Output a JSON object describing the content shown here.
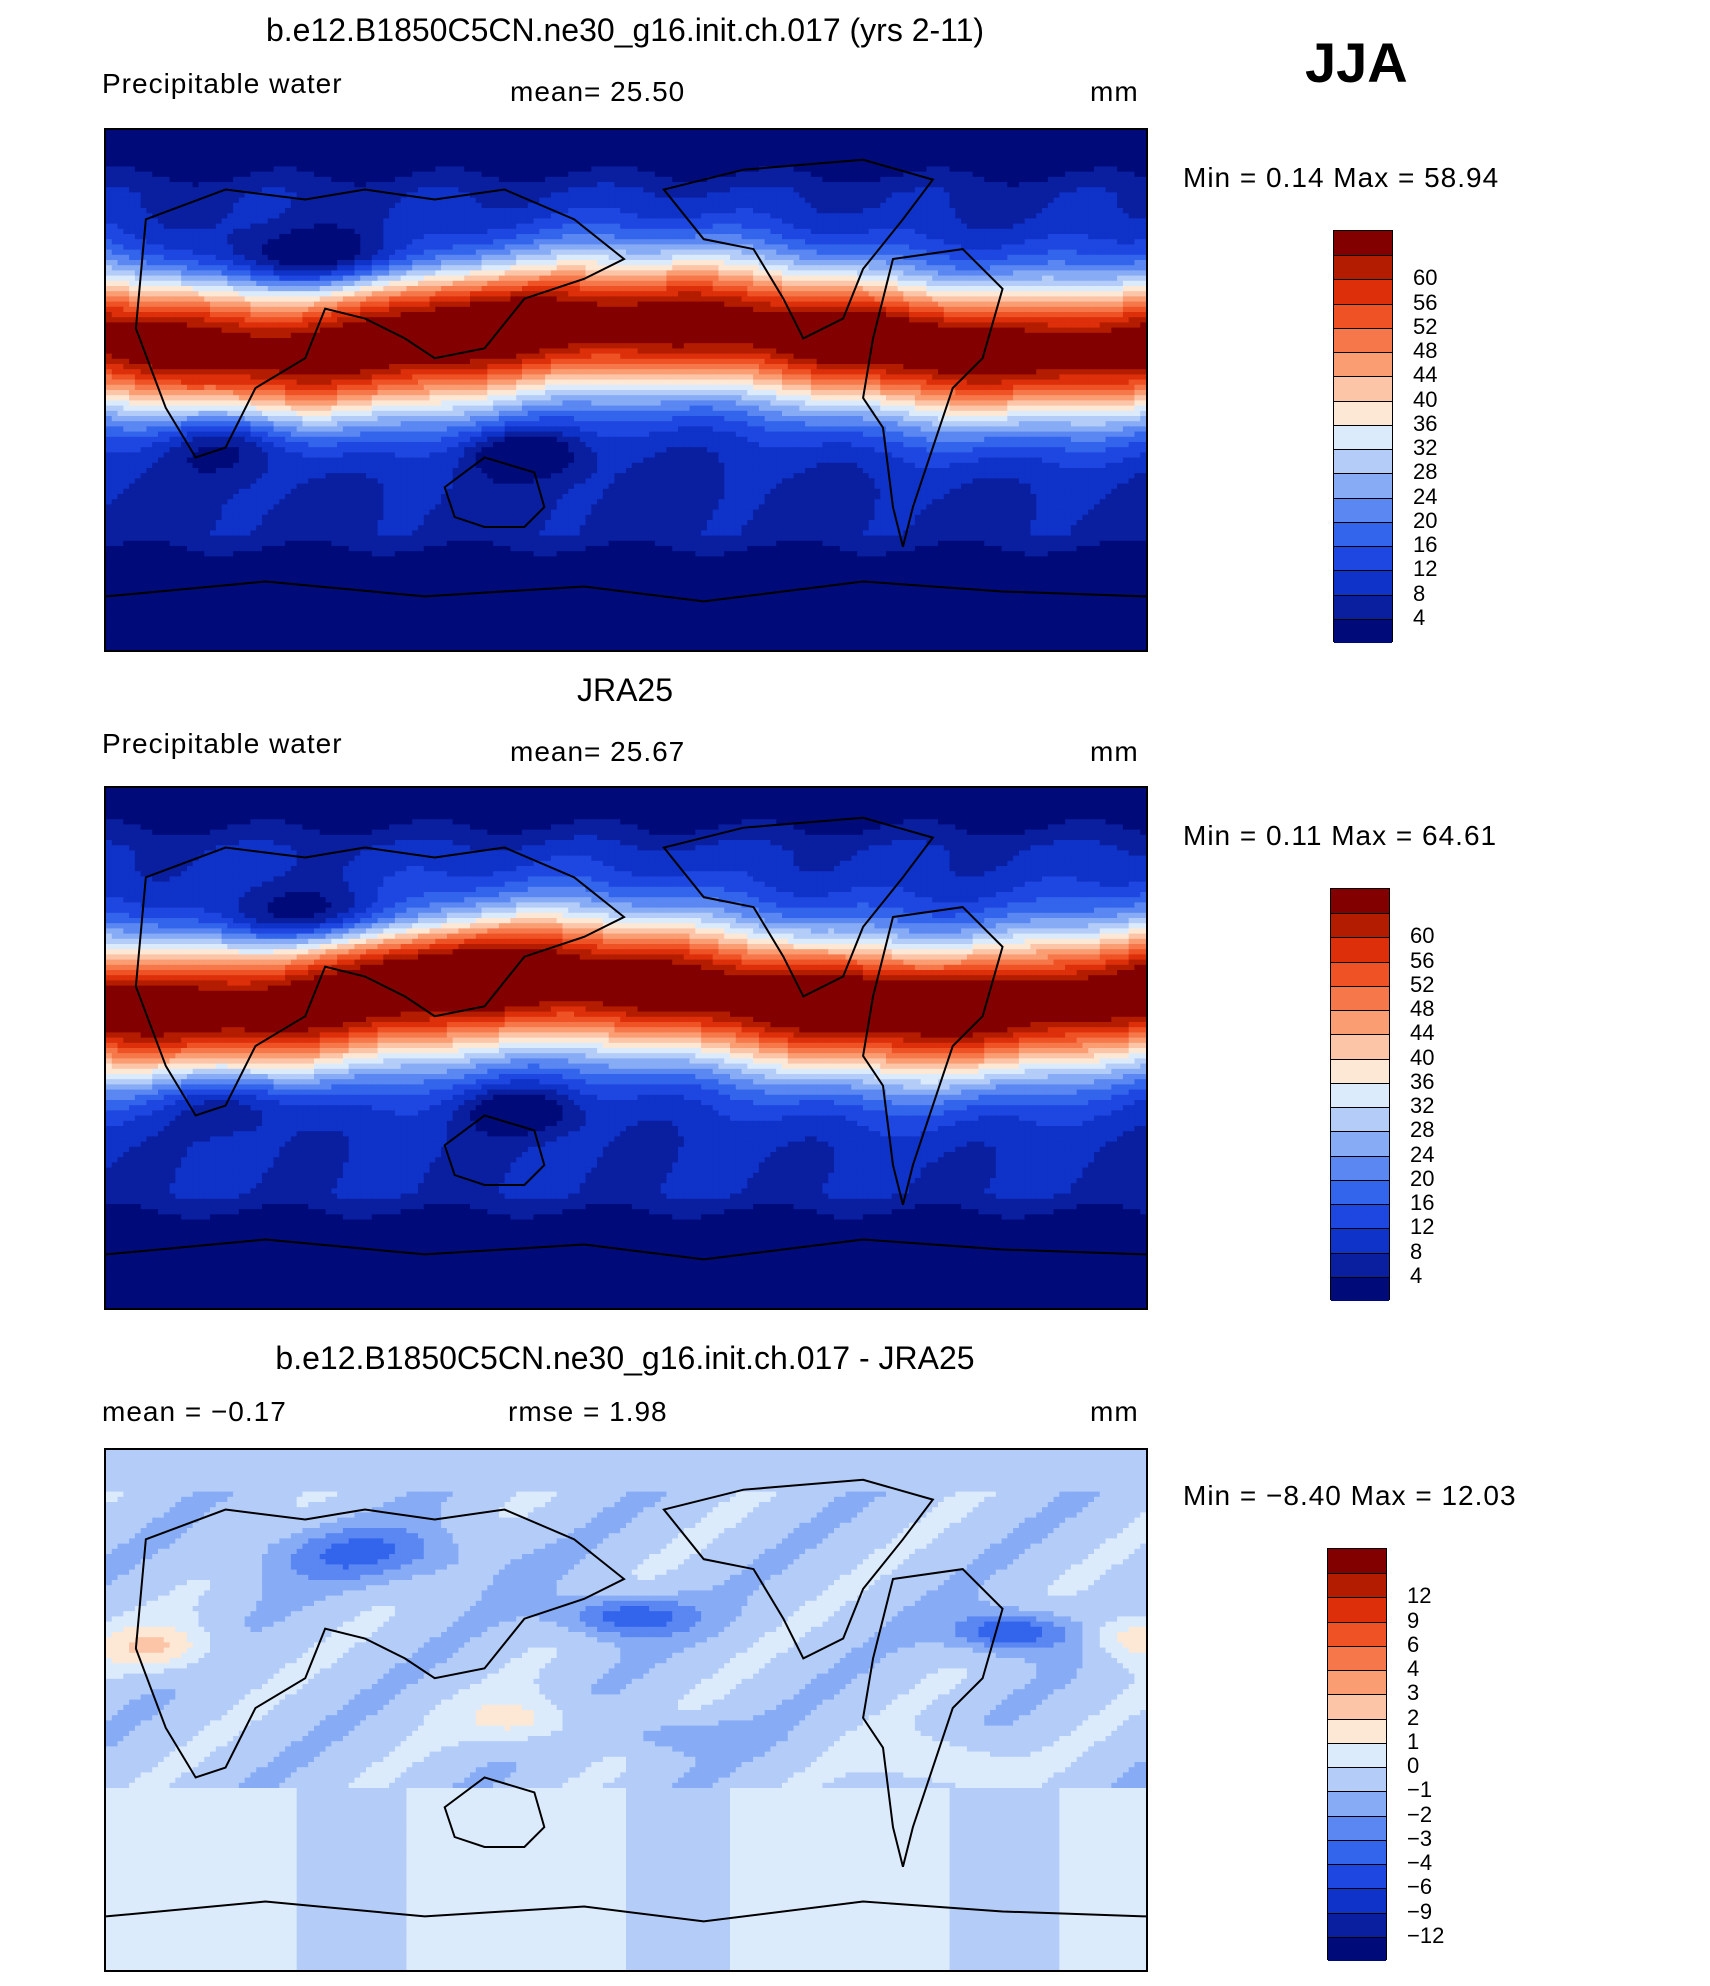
{
  "season": "JJA",
  "panels": [
    {
      "id": "model",
      "title": "b.e12.B1850C5CN.ne30_g16.init.ch.017 (yrs 2-11)",
      "variable": "Precipitable  water",
      "stat_left": "",
      "stat": "mean=   25.50",
      "units": "mm",
      "minmax": "Min  =      0.14  Max  =     58.94",
      "scale": "absolute",
      "colorbar": {
        "colors": [
          "#000a78",
          "#0a1ea0",
          "#0f32c8",
          "#1e46e0",
          "#3264ec",
          "#5a87f2",
          "#87acf5",
          "#b4cdf8",
          "#dcebfc",
          "#fde8d5",
          "#fcc5a8",
          "#fa9d73",
          "#f6784a",
          "#ef5225",
          "#dd2f0a",
          "#b41c00",
          "#820000"
        ],
        "labels": [
          "4",
          "8",
          "12",
          "16",
          "20",
          "24",
          "28",
          "32",
          "36",
          "40",
          "44",
          "48",
          "52",
          "56",
          "60"
        ]
      }
    },
    {
      "id": "obs",
      "title": "JRA25",
      "variable": "Precipitable  water",
      "stat_left": "",
      "stat": "mean=   25.67",
      "units": "mm",
      "minmax": "Min  =      0.11  Max  =     64.61",
      "scale": "absolute",
      "colorbar": {
        "colors": [
          "#000a78",
          "#0a1ea0",
          "#0f32c8",
          "#1e46e0",
          "#3264ec",
          "#5a87f2",
          "#87acf5",
          "#b4cdf8",
          "#dcebfc",
          "#fde8d5",
          "#fcc5a8",
          "#fa9d73",
          "#f6784a",
          "#ef5225",
          "#dd2f0a",
          "#b41c00",
          "#820000"
        ],
        "labels": [
          "4",
          "8",
          "12",
          "16",
          "20",
          "24",
          "28",
          "32",
          "36",
          "40",
          "44",
          "48",
          "52",
          "56",
          "60"
        ]
      }
    },
    {
      "id": "diff",
      "title": "b.e12.B1850C5CN.ne30_g16.init.ch.017 - JRA25",
      "variable": "",
      "stat_left": "mean  =    −0.17",
      "stat": "rmse  =     1.98",
      "units": "mm",
      "minmax": "Min  =    −8.40  Max  =     12.03",
      "scale": "difference",
      "colorbar": {
        "colors": [
          "#000a78",
          "#0a1ea0",
          "#0f32c8",
          "#1e46e0",
          "#3264ec",
          "#5a87f2",
          "#87acf5",
          "#b4cdf8",
          "#dcebfc",
          "#fde8d5",
          "#fcc5a8",
          "#fa9d73",
          "#f6784a",
          "#ef5225",
          "#dd2f0a",
          "#b41c00",
          "#820000"
        ],
        "labels": [
          "−12",
          "−9",
          "−6",
          "−4",
          "−3",
          "−2",
          "−1",
          "0",
          "1",
          "2",
          "3",
          "4",
          "6",
          "9",
          "12"
        ]
      }
    }
  ]
}
